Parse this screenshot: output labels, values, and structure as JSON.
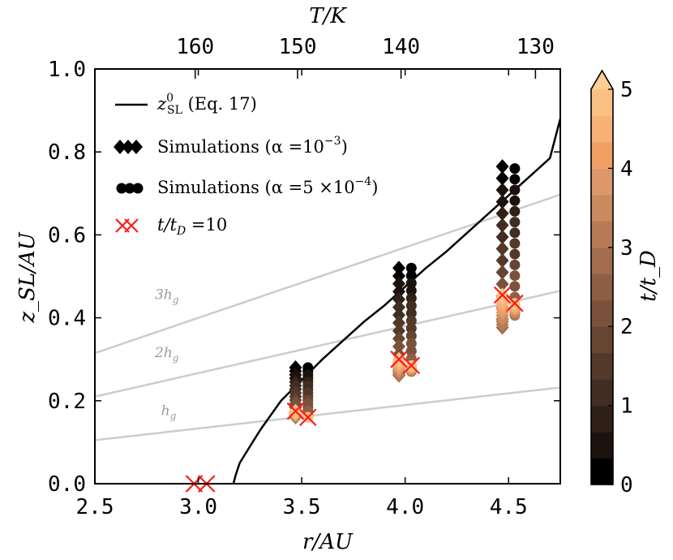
{
  "chart_data": {
    "type": "scatter",
    "xlabel": "r/AU",
    "ylabel": "z_SL/AU",
    "top_xlabel": "T/K",
    "xlim": [
      2.5,
      4.75
    ],
    "ylim": [
      0.0,
      1.0
    ],
    "xticks": [
      "2.5",
      "3.0",
      "3.5",
      "4.0",
      "4.5"
    ],
    "yticks": [
      "0.0",
      "0.2",
      "0.4",
      "0.6",
      "0.8",
      "1.0"
    ],
    "top_ticks": [
      {
        "label": "160",
        "r": 2.985
      },
      {
        "label": "150",
        "r": 3.48
      },
      {
        "label": "140",
        "r": 3.98
      },
      {
        "label": "130",
        "r": 4.63
      }
    ],
    "model_curve": {
      "name": "z_SL^0 (Eq. 17)",
      "points": [
        [
          3.17,
          0.0
        ],
        [
          3.18,
          0.02
        ],
        [
          3.2,
          0.05
        ],
        [
          3.25,
          0.09
        ],
        [
          3.3,
          0.13
        ],
        [
          3.35,
          0.165
        ],
        [
          3.4,
          0.2
        ],
        [
          3.5,
          0.25
        ],
        [
          3.6,
          0.3
        ],
        [
          3.7,
          0.345
        ],
        [
          3.8,
          0.39
        ],
        [
          3.9,
          0.43
        ],
        [
          4.0,
          0.475
        ],
        [
          4.1,
          0.52
        ],
        [
          4.2,
          0.56
        ],
        [
          4.3,
          0.605
        ],
        [
          4.4,
          0.65
        ],
        [
          4.5,
          0.695
        ],
        [
          4.6,
          0.74
        ],
        [
          4.7,
          0.785
        ],
        [
          4.75,
          0.88
        ]
      ]
    },
    "scale_heights": [
      {
        "label": "h",
        "sub": "g",
        "y0": 0.105,
        "y1": 0.232,
        "label_r": 2.82,
        "label_z": 0.165
      },
      {
        "label": "2h",
        "sub": "g",
        "y0": 0.21,
        "y1": 0.465,
        "label_r": 2.79,
        "label_z": 0.305
      },
      {
        "label": "3h",
        "sub": "g",
        "y0": 0.315,
        "y1": 0.697,
        "label_r": 2.79,
        "label_z": 0.445
      }
    ],
    "series": [
      {
        "name": "Simulations (α =10^−3)",
        "marker": "diamond",
        "columns": [
          {
            "r": 3.47,
            "top": 0.28,
            "bottom": 0.16,
            "final": 0.175
          },
          {
            "r": 3.97,
            "top": 0.52,
            "bottom": 0.26,
            "final": 0.3
          },
          {
            "r": 4.47,
            "top": 0.765,
            "bottom": 0.375,
            "final": 0.455
          }
        ]
      },
      {
        "name": "Simulations (α =5 ×10^−4)",
        "marker": "circle",
        "columns": [
          {
            "r": 3.53,
            "top": 0.28,
            "bottom": 0.16,
            "final": 0.16
          },
          {
            "r": 4.03,
            "top": 0.52,
            "bottom": 0.27,
            "final": 0.285
          },
          {
            "r": 4.53,
            "top": 0.76,
            "bottom": 0.405,
            "final": 0.435
          }
        ]
      }
    ],
    "t_tD_10_points": [
      [
        2.98,
        0.0
      ],
      [
        3.04,
        0.0
      ],
      [
        3.47,
        0.175
      ],
      [
        3.53,
        0.16
      ],
      [
        3.97,
        0.3
      ],
      [
        4.03,
        0.285
      ],
      [
        4.47,
        0.455
      ],
      [
        4.53,
        0.435
      ]
    ],
    "legend": {
      "position": "top-left",
      "entries": [
        {
          "main": "z",
          "sup": "0",
          "sub": "SL",
          "rest": " (Eq. 17)"
        },
        {
          "main": "Simulations (α =10",
          "sup": "−3",
          "rest": ")"
        },
        {
          "main": "Simulations (α =5 ×10",
          "sup": "−4",
          "rest": ")"
        },
        {
          "main": "t/t",
          "sub": "D",
          "rest": " =10"
        }
      ]
    },
    "colorbar": {
      "label": "t/t_D",
      "range": [
        0,
        5
      ],
      "ticks": [
        "0",
        "1",
        "2",
        "3",
        "4",
        "5"
      ],
      "colors": [
        "#000000",
        "#1c120d",
        "#2f2018",
        "#412d21",
        "#53392a",
        "#664533",
        "#7a523c",
        "#8d5f44",
        "#a26d4d",
        "#b67b56",
        "#c98a60",
        "#dc986a",
        "#ef9f64",
        "#f6b176",
        "#fbc183"
      ],
      "extend": "max"
    }
  }
}
